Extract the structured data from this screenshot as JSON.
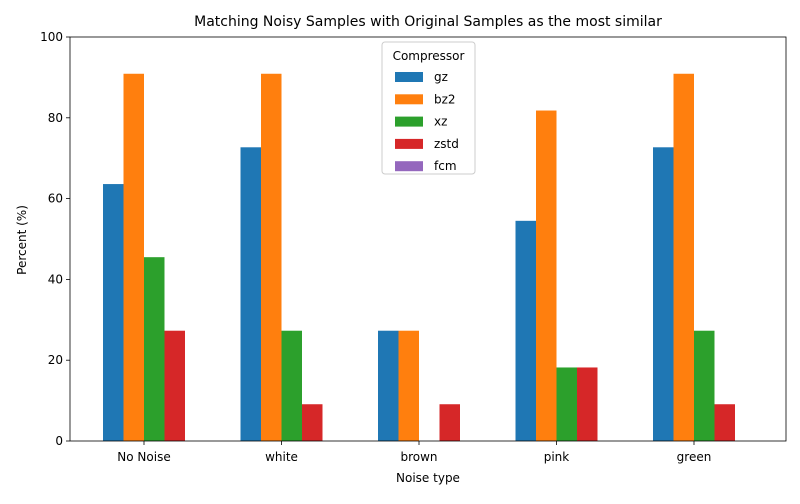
{
  "chart_data": {
    "type": "bar",
    "title": "Matching Noisy Samples with Original Samples as the most similar",
    "xlabel": "Noise type",
    "ylabel": "Percent (%)",
    "ylim": [
      0,
      100
    ],
    "yticks": [
      0,
      20,
      40,
      60,
      80,
      100
    ],
    "categories": [
      "No Noise",
      "white",
      "brown",
      "pink",
      "green"
    ],
    "legend_title": "Compressor",
    "legend_position": "top-center",
    "grid": false,
    "series": [
      {
        "name": "gz",
        "color": "#1f77b4",
        "values": [
          63.6,
          72.7,
          27.3,
          54.5,
          72.7
        ]
      },
      {
        "name": "bz2",
        "color": "#ff7f0e",
        "values": [
          90.9,
          90.9,
          27.3,
          81.8,
          90.9
        ]
      },
      {
        "name": "xz",
        "color": "#2ca02c",
        "values": [
          45.5,
          27.3,
          0,
          18.2,
          27.3
        ]
      },
      {
        "name": "zstd",
        "color": "#d62728",
        "values": [
          27.3,
          9.1,
          9.1,
          18.2,
          9.1
        ]
      },
      {
        "name": "fcm",
        "color": "#9467bd",
        "values": [
          0,
          0,
          0,
          0,
          0
        ]
      }
    ]
  }
}
